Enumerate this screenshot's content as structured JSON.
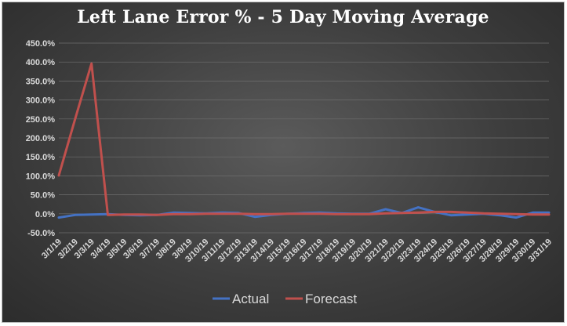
{
  "chart_data": {
    "type": "line",
    "title": "Left Lane Error % -  5 Day Moving Average",
    "xlabel": "",
    "ylabel": "",
    "categories": [
      "3/1/19",
      "3/2/19",
      "3/3/19",
      "3/4/19",
      "3/5/19",
      "3/6/19",
      "3/7/19",
      "3/8/19",
      "3/9/19",
      "3/10/19",
      "3/11/19",
      "3/12/19",
      "3/13/19",
      "3/14/19",
      "3/15/19",
      "3/16/19",
      "3/17/19",
      "3/18/19",
      "3/19/19",
      "3/20/19",
      "3/21/19",
      "3/22/19",
      "3/23/19",
      "3/24/19",
      "3/25/19",
      "3/26/19",
      "3/27/19",
      "3/28/19",
      "3/29/19",
      "3/30/19",
      "3/31/19"
    ],
    "ylim": [
      -50,
      450
    ],
    "yticks": [
      -50,
      0,
      50,
      100,
      150,
      200,
      250,
      300,
      350,
      400,
      450
    ],
    "ytick_labels": [
      "-50.0%",
      "0.0%",
      "50.0%",
      "100.0%",
      "150.0%",
      "200.0%",
      "250.0%",
      "300.0%",
      "350.0%",
      "400.0%",
      "450.0%"
    ],
    "grid": true,
    "legend_position": "bottom",
    "series": [
      {
        "name": "Actual",
        "color": "#4472c4",
        "values": [
          -10,
          -3,
          -2,
          -1,
          -3,
          -4,
          -3,
          3,
          2,
          1,
          3,
          2,
          -8,
          -3,
          0,
          2,
          3,
          1,
          0,
          0,
          12,
          2,
          17,
          5,
          -4,
          -2,
          0,
          -4,
          -10,
          3,
          3
        ]
      },
      {
        "name": "Forecast",
        "color": "#c0504d",
        "values": [
          101,
          250,
          396,
          -3,
          -2,
          -2,
          -3,
          -1,
          -1,
          0,
          0,
          0,
          -1,
          -1,
          0,
          0,
          0,
          -1,
          -1,
          -1,
          1,
          2,
          3,
          5,
          5,
          3,
          1,
          0,
          -1,
          -2,
          -2
        ]
      }
    ]
  }
}
